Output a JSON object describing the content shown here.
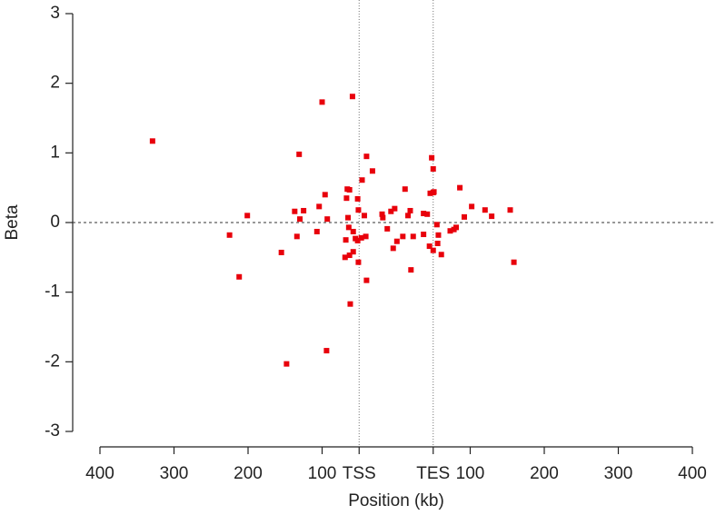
{
  "chart_data": {
    "type": "scatter",
    "xlabel": "Position (kb)",
    "ylabel": "Beta",
    "xlim": [
      -400,
      400
    ],
    "ylim": [
      -3,
      3
    ],
    "xticks": [
      {
        "value": -400,
        "label": "400"
      },
      {
        "value": -300,
        "label": "300"
      },
      {
        "value": -200,
        "label": "200"
      },
      {
        "value": -100,
        "label": "100"
      },
      {
        "value": -50,
        "label": "TSS"
      },
      {
        "value": 50,
        "label": "TES"
      },
      {
        "value": 100,
        "label": "100"
      },
      {
        "value": 200,
        "label": "200"
      },
      {
        "value": 300,
        "label": "300"
      },
      {
        "value": 400,
        "label": "400"
      }
    ],
    "yticks": [
      -3,
      -2,
      -1,
      0,
      1,
      2,
      3
    ],
    "color": "#e8000b",
    "x": [
      -329,
      -225,
      -212,
      -201,
      -155,
      -148,
      -137,
      -134,
      -131,
      -130,
      -125,
      -107,
      -104,
      -100,
      -96,
      -93,
      -94,
      -69,
      -68,
      -67,
      -66,
      -65,
      -64,
      -63,
      -63,
      -62,
      -59,
      -58,
      -58,
      -55,
      -52,
      -52,
      -51,
      -51,
      -47,
      -46,
      -43,
      -41,
      -40,
      -40,
      -32,
      -19,
      -18,
      -12,
      -7,
      -4,
      -2,
      1,
      9,
      12,
      16,
      19,
      20,
      23,
      37,
      37,
      42,
      45,
      46,
      48,
      50,
      50,
      51,
      50,
      55,
      56,
      57,
      61,
      73,
      78,
      81,
      86,
      92,
      102,
      120,
      129,
      154,
      159
    ],
    "y": [
      1.17,
      -0.18,
      -0.78,
      0.1,
      -0.43,
      -2.03,
      0.16,
      -0.2,
      0.98,
      0.05,
      0.17,
      -0.13,
      0.23,
      1.73,
      0.4,
      0.05,
      -1.84,
      -0.5,
      -0.25,
      0.35,
      0.48,
      0.07,
      -0.07,
      0.47,
      -0.47,
      -1.17,
      1.81,
      -0.42,
      -0.13,
      -0.23,
      0.34,
      -0.26,
      0.18,
      -0.57,
      -0.22,
      0.61,
      0.1,
      -0.2,
      0.95,
      -0.83,
      0.74,
      0.12,
      0.07,
      -0.09,
      0.16,
      -0.37,
      0.2,
      -0.27,
      -0.2,
      0.48,
      0.1,
      0.17,
      -0.68,
      -0.2,
      -0.17,
      0.13,
      0.12,
      -0.34,
      0.42,
      0.93,
      0.77,
      0.43,
      0.44,
      -0.4,
      -0.03,
      -0.3,
      -0.18,
      -0.46,
      -0.12,
      -0.1,
      -0.07,
      0.5,
      0.08,
      0.23,
      0.18,
      0.09,
      0.18,
      -0.57
    ]
  }
}
